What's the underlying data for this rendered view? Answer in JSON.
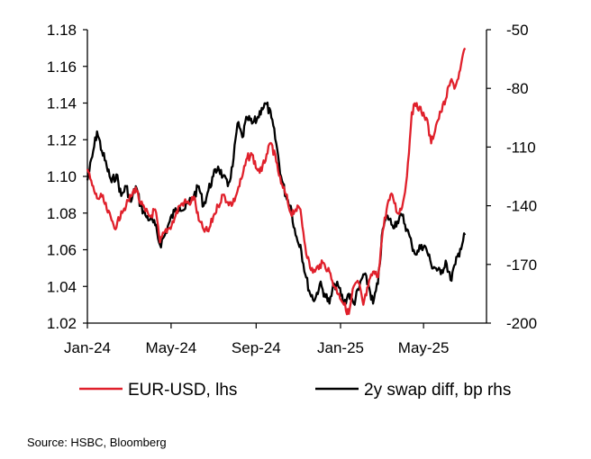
{
  "chart_data": {
    "type": "line",
    "x_ticks": [
      "Jan-24",
      "May-24",
      "Sep-24",
      "Jan-25",
      "May-25"
    ],
    "x_range": [
      "2024-01-01",
      "2025-07-31"
    ],
    "y_left": {
      "ticks": [
        "1.02",
        "1.04",
        "1.06",
        "1.08",
        "1.10",
        "1.12",
        "1.14",
        "1.16",
        "1.18"
      ],
      "range": [
        1.02,
        1.18
      ]
    },
    "y_right": {
      "ticks": [
        "-200",
        "-170",
        "-140",
        "-110",
        "-80",
        "-50"
      ],
      "range": [
        -200,
        -50
      ]
    },
    "grid": false,
    "legend_position": "bottom",
    "series": [
      {
        "name": "EUR-USD, lhs",
        "color": "#e0202b",
        "axis": "left",
        "points": [
          [
            "2024-01-01",
            1.104
          ],
          [
            "2024-01-08",
            1.095
          ],
          [
            "2024-01-15",
            1.088
          ],
          [
            "2024-01-22",
            1.089
          ],
          [
            "2024-01-29",
            1.082
          ],
          [
            "2024-02-05",
            1.076
          ],
          [
            "2024-02-12",
            1.072
          ],
          [
            "2024-02-19",
            1.081
          ],
          [
            "2024-02-26",
            1.084
          ],
          [
            "2024-03-04",
            1.089
          ],
          [
            "2024-03-11",
            1.094
          ],
          [
            "2024-03-18",
            1.085
          ],
          [
            "2024-03-25",
            1.081
          ],
          [
            "2024-04-01",
            1.078
          ],
          [
            "2024-04-08",
            1.082
          ],
          [
            "2024-04-15",
            1.064
          ],
          [
            "2024-04-22",
            1.07
          ],
          [
            "2024-04-29",
            1.072
          ],
          [
            "2024-05-06",
            1.077
          ],
          [
            "2024-05-13",
            1.084
          ],
          [
            "2024-05-20",
            1.086
          ],
          [
            "2024-05-27",
            1.085
          ],
          [
            "2024-06-03",
            1.089
          ],
          [
            "2024-06-10",
            1.076
          ],
          [
            "2024-06-17",
            1.071
          ],
          [
            "2024-06-24",
            1.07
          ],
          [
            "2024-07-01",
            1.078
          ],
          [
            "2024-07-08",
            1.084
          ],
          [
            "2024-07-15",
            1.09
          ],
          [
            "2024-07-22",
            1.086
          ],
          [
            "2024-07-29",
            1.085
          ],
          [
            "2024-08-05",
            1.092
          ],
          [
            "2024-08-12",
            1.1
          ],
          [
            "2024-08-19",
            1.11
          ],
          [
            "2024-08-26",
            1.112
          ],
          [
            "2024-09-02",
            1.104
          ],
          [
            "2024-09-09",
            1.103
          ],
          [
            "2024-09-16",
            1.112
          ],
          [
            "2024-09-23",
            1.118
          ],
          [
            "2024-09-30",
            1.108
          ],
          [
            "2024-10-07",
            1.096
          ],
          [
            "2024-10-14",
            1.09
          ],
          [
            "2024-10-21",
            1.08
          ],
          [
            "2024-10-28",
            1.082
          ],
          [
            "2024-11-04",
            1.082
          ],
          [
            "2024-11-11",
            1.062
          ],
          [
            "2024-11-18",
            1.05
          ],
          [
            "2024-11-25",
            1.048
          ],
          [
            "2024-12-02",
            1.052
          ],
          [
            "2024-12-09",
            1.052
          ],
          [
            "2024-12-16",
            1.048
          ],
          [
            "2024-12-23",
            1.04
          ],
          [
            "2024-12-30",
            1.036
          ],
          [
            "2025-01-06",
            1.03
          ],
          [
            "2025-01-13",
            1.025
          ],
          [
            "2025-01-20",
            1.04
          ],
          [
            "2025-01-27",
            1.042
          ],
          [
            "2025-02-03",
            1.03
          ],
          [
            "2025-02-10",
            1.04
          ],
          [
            "2025-02-17",
            1.048
          ],
          [
            "2025-02-24",
            1.045
          ],
          [
            "2025-03-03",
            1.07
          ],
          [
            "2025-03-10",
            1.085
          ],
          [
            "2025-03-17",
            1.09
          ],
          [
            "2025-03-24",
            1.08
          ],
          [
            "2025-03-31",
            1.083
          ],
          [
            "2025-04-07",
            1.1
          ],
          [
            "2025-04-14",
            1.135
          ],
          [
            "2025-04-21",
            1.14
          ],
          [
            "2025-04-28",
            1.135
          ],
          [
            "2025-05-05",
            1.132
          ],
          [
            "2025-05-12",
            1.118
          ],
          [
            "2025-05-19",
            1.128
          ],
          [
            "2025-05-26",
            1.135
          ],
          [
            "2025-06-02",
            1.142
          ],
          [
            "2025-06-09",
            1.152
          ],
          [
            "2025-06-16",
            1.149
          ],
          [
            "2025-06-23",
            1.158
          ],
          [
            "2025-06-30",
            1.17
          ]
        ]
      },
      {
        "name": "2y swap diff, bp rhs",
        "color": "#000000",
        "axis": "right",
        "points": [
          [
            "2024-01-01",
            -127
          ],
          [
            "2024-01-08",
            -115
          ],
          [
            "2024-01-15",
            -102
          ],
          [
            "2024-01-22",
            -112
          ],
          [
            "2024-01-29",
            -120
          ],
          [
            "2024-02-05",
            -128
          ],
          [
            "2024-02-12",
            -124
          ],
          [
            "2024-02-19",
            -135
          ],
          [
            "2024-02-26",
            -130
          ],
          [
            "2024-03-04",
            -138
          ],
          [
            "2024-03-11",
            -130
          ],
          [
            "2024-03-18",
            -140
          ],
          [
            "2024-03-25",
            -145
          ],
          [
            "2024-04-01",
            -147
          ],
          [
            "2024-04-08",
            -150
          ],
          [
            "2024-04-15",
            -160
          ],
          [
            "2024-04-22",
            -155
          ],
          [
            "2024-04-29",
            -148
          ],
          [
            "2024-05-06",
            -143
          ],
          [
            "2024-05-13",
            -140
          ],
          [
            "2024-05-20",
            -142
          ],
          [
            "2024-05-27",
            -138
          ],
          [
            "2024-06-03",
            -135
          ],
          [
            "2024-06-10",
            -130
          ],
          [
            "2024-06-17",
            -140
          ],
          [
            "2024-06-24",
            -132
          ],
          [
            "2024-07-01",
            -125
          ],
          [
            "2024-07-08",
            -120
          ],
          [
            "2024-07-15",
            -125
          ],
          [
            "2024-07-22",
            -130
          ],
          [
            "2024-07-29",
            -120
          ],
          [
            "2024-08-05",
            -98
          ],
          [
            "2024-08-12",
            -105
          ],
          [
            "2024-08-19",
            -95
          ],
          [
            "2024-08-26",
            -98
          ],
          [
            "2024-09-02",
            -96
          ],
          [
            "2024-09-09",
            -90
          ],
          [
            "2024-09-16",
            -88
          ],
          [
            "2024-09-23",
            -95
          ],
          [
            "2024-09-30",
            -108
          ],
          [
            "2024-10-07",
            -125
          ],
          [
            "2024-10-14",
            -135
          ],
          [
            "2024-10-21",
            -140
          ],
          [
            "2024-10-28",
            -155
          ],
          [
            "2024-11-04",
            -160
          ],
          [
            "2024-11-11",
            -175
          ],
          [
            "2024-11-18",
            -185
          ],
          [
            "2024-11-25",
            -188
          ],
          [
            "2024-12-02",
            -180
          ],
          [
            "2024-12-09",
            -185
          ],
          [
            "2024-12-16",
            -190
          ],
          [
            "2024-12-23",
            -180
          ],
          [
            "2024-12-30",
            -182
          ],
          [
            "2025-01-06",
            -190
          ],
          [
            "2025-01-13",
            -185
          ],
          [
            "2025-01-20",
            -190
          ],
          [
            "2025-01-27",
            -183
          ],
          [
            "2025-02-03",
            -175
          ],
          [
            "2025-02-10",
            -180
          ],
          [
            "2025-02-17",
            -190
          ],
          [
            "2025-02-24",
            -180
          ],
          [
            "2025-03-03",
            -152
          ],
          [
            "2025-03-10",
            -145
          ],
          [
            "2025-03-17",
            -150
          ],
          [
            "2025-03-24",
            -148
          ],
          [
            "2025-03-31",
            -145
          ],
          [
            "2025-04-07",
            -152
          ],
          [
            "2025-04-14",
            -160
          ],
          [
            "2025-04-21",
            -165
          ],
          [
            "2025-04-28",
            -160
          ],
          [
            "2025-05-05",
            -162
          ],
          [
            "2025-05-12",
            -170
          ],
          [
            "2025-05-19",
            -172
          ],
          [
            "2025-05-26",
            -175
          ],
          [
            "2025-06-02",
            -168
          ],
          [
            "2025-06-09",
            -178
          ],
          [
            "2025-06-16",
            -170
          ],
          [
            "2025-06-23",
            -162
          ],
          [
            "2025-06-30",
            -155
          ]
        ]
      }
    ]
  },
  "source": "Source: HSBC, Bloomberg"
}
